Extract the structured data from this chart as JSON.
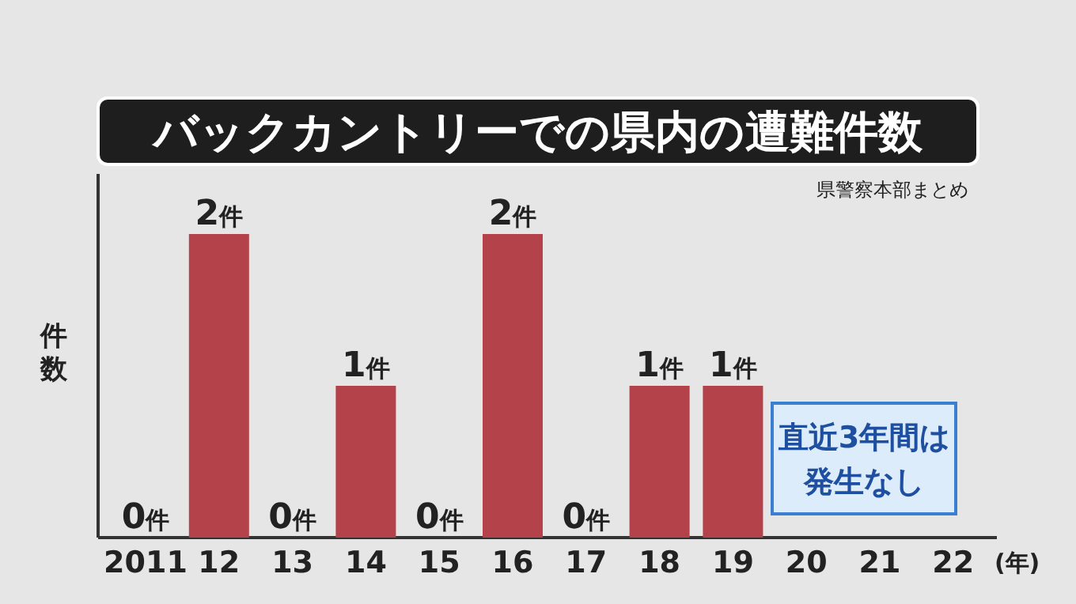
{
  "chart_data": {
    "type": "bar",
    "title": "バックカントリーでの県内の遭難件数",
    "ylabel": "件数",
    "xlabel": "(年)",
    "categories": [
      "2011",
      "12",
      "13",
      "14",
      "15",
      "16",
      "17",
      "18",
      "19",
      "20",
      "21",
      "22"
    ],
    "values": [
      0,
      2,
      0,
      1,
      0,
      2,
      0,
      1,
      1,
      null,
      null,
      null
    ],
    "value_labels": [
      "0件",
      "2件",
      "0件",
      "1件",
      "0件",
      "2件",
      "0件",
      "1件",
      "1件",
      null,
      null,
      null
    ],
    "color": "#b4424a",
    "annotations": [
      "県警察本部まとめ",
      "直近3年間は発生なし"
    ]
  }
}
